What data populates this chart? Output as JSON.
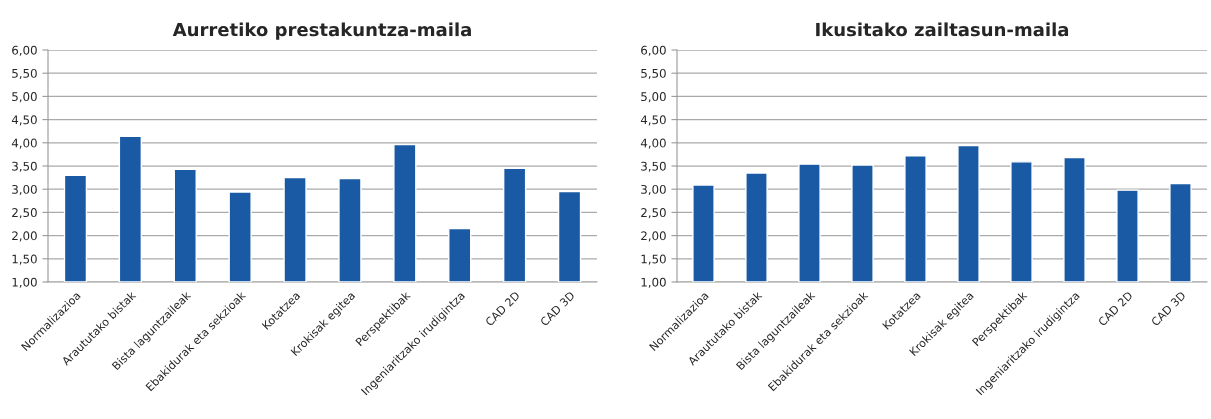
{
  "chart_data": [
    {
      "type": "bar",
      "title": "Aurretiko prestakuntza-maila",
      "categories": [
        "Normalizazioa",
        "Araututako bistak",
        "Bista laguntzaileak",
        "Ebakidurak eta sekzioak",
        "Kotatzea",
        "Krokisak egitea",
        "Perspektibak",
        "Ingeniaritzako irudigintza",
        "CAD 2D",
        "CAD 3D"
      ],
      "values": [
        3.3,
        4.14,
        3.43,
        2.94,
        3.25,
        3.23,
        3.96,
        2.15,
        3.45,
        2.95
      ],
      "color": "#1a5aa5",
      "ylim": [
        1,
        6
      ],
      "yticks": [
        {
          "value": 1,
          "label": "1,00"
        },
        {
          "value": 1.5,
          "label": "1,50"
        },
        {
          "value": 2,
          "label": "2,00"
        },
        {
          "value": 2.5,
          "label": "2,50"
        },
        {
          "value": 3,
          "label": "3,00"
        },
        {
          "value": 3.5,
          "label": "3,50"
        },
        {
          "value": 4,
          "label": "4,00"
        },
        {
          "value": 4.5,
          "label": "4,50"
        },
        {
          "value": 5,
          "label": "5,00"
        },
        {
          "value": 5.5,
          "label": "5,50"
        },
        {
          "value": 6,
          "label": "6,00"
        }
      ],
      "grid": "y"
    },
    {
      "type": "bar",
      "title": "Ikusitako zailtasun-maila",
      "categories": [
        "Normalizazioa",
        "Araututako bistak",
        "Bista laguntzaileak",
        "Ebakidurak eta sekzioak",
        "Kotatzea",
        "Krokisak egitea",
        "Perspektibak",
        "Ingeniaritzako irudigintza",
        "CAD 2D",
        "CAD 3D"
      ],
      "values": [
        3.09,
        3.35,
        3.54,
        3.52,
        3.72,
        3.94,
        3.59,
        3.68,
        2.98,
        3.12
      ],
      "color": "#1a5aa5",
      "ylim": [
        1,
        6
      ],
      "yticks": [
        {
          "value": 1,
          "label": "1,00"
        },
        {
          "value": 1.5,
          "label": "1,50"
        },
        {
          "value": 2,
          "label": "2,00"
        },
        {
          "value": 2.5,
          "label": "2,50"
        },
        {
          "value": 3,
          "label": "3,00"
        },
        {
          "value": 3.5,
          "label": "3,50"
        },
        {
          "value": 4,
          "label": "4,00"
        },
        {
          "value": 4.5,
          "label": "4,50"
        },
        {
          "value": 5,
          "label": "5,00"
        },
        {
          "value": 5.5,
          "label": "5,50"
        },
        {
          "value": 6,
          "label": "6,00"
        }
      ],
      "grid": "y"
    }
  ]
}
